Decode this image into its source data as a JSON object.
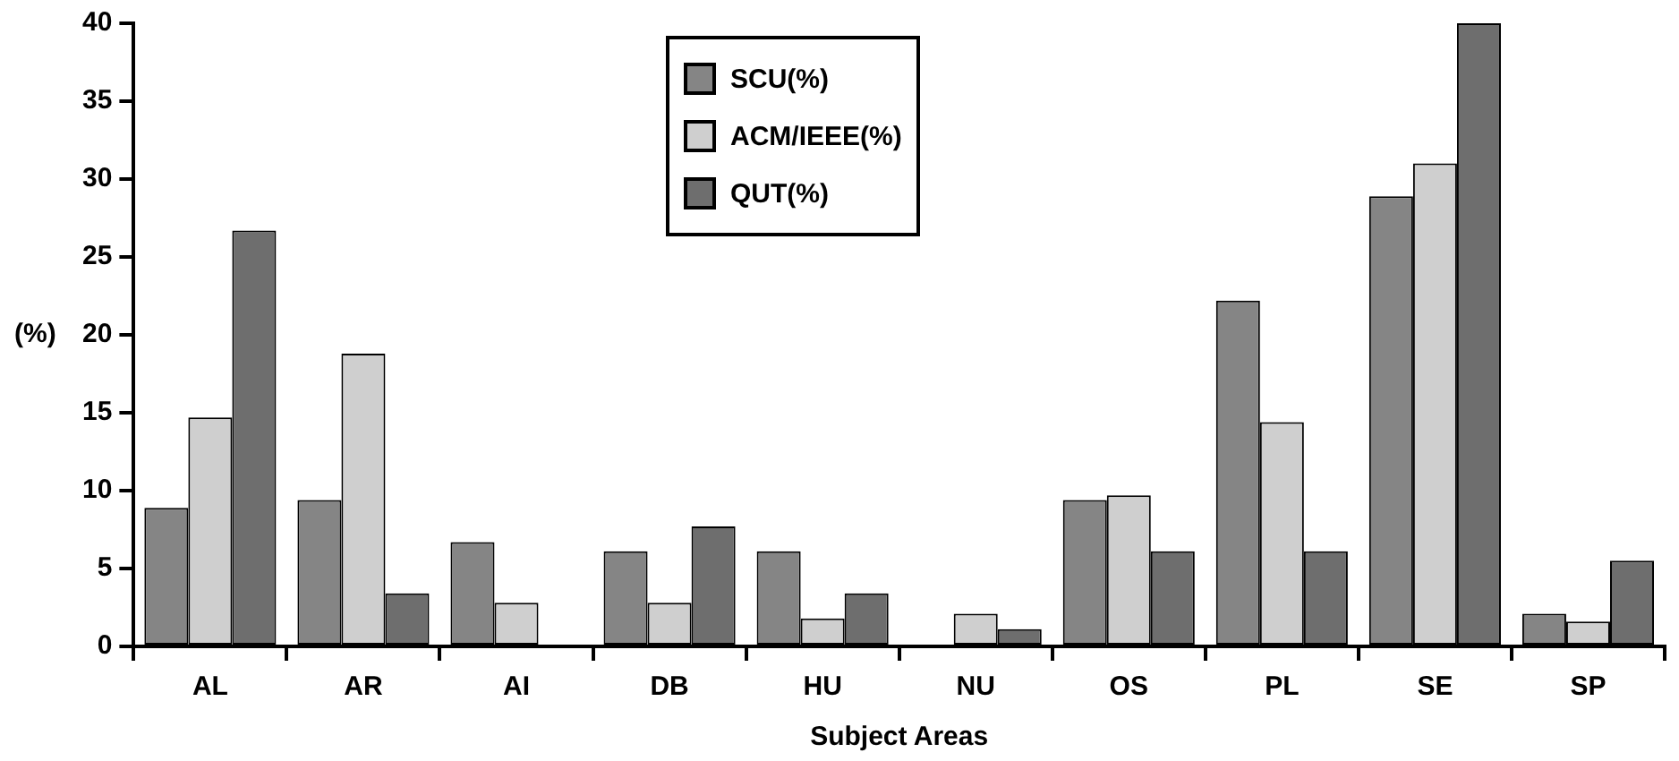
{
  "chart_data": {
    "type": "bar",
    "xlabel": "Subject Areas",
    "ylabel": "(%)",
    "categories": [
      "AL",
      "AR",
      "AI",
      "DB",
      "HU",
      "NU",
      "OS",
      "PL",
      "SE",
      "SP"
    ],
    "series": [
      {
        "name": "SCU(%)",
        "color": "#858585",
        "values": [
          8.9,
          9.4,
          6.7,
          6.1,
          6.1,
          0,
          9.4,
          22.2,
          28.9,
          2.1
        ]
      },
      {
        "name": "ACM/IEEE(%)",
        "color": "#cfcfcf",
        "values": [
          14.7,
          18.8,
          2.8,
          2.8,
          1.8,
          2.1,
          9.7,
          14.4,
          31.0,
          1.6
        ]
      },
      {
        "name": "QUT(%)",
        "color": "#6e6e6e",
        "values": [
          26.7,
          3.4,
          0,
          7.7,
          3.4,
          1.1,
          6.1,
          6.1,
          40.0,
          5.5
        ]
      }
    ],
    "ylim": [
      0,
      40
    ],
    "yticks": [
      0,
      5,
      10,
      15,
      20,
      25,
      30,
      35,
      40
    ],
    "grid": false,
    "legend": "top"
  }
}
